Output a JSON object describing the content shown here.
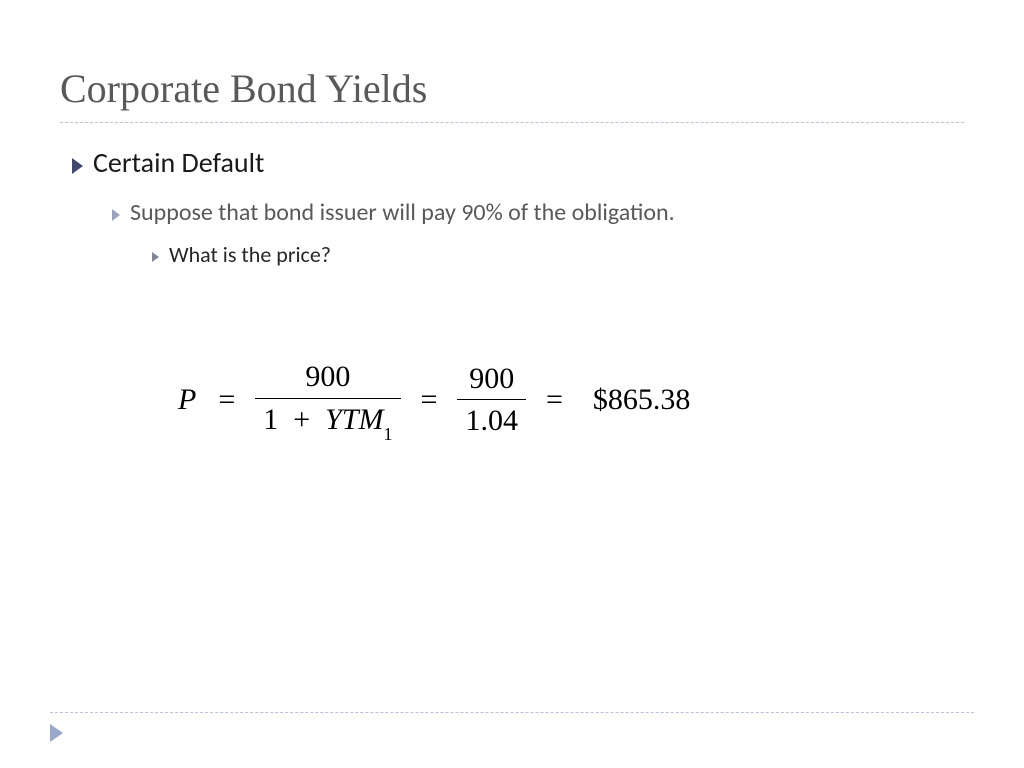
{
  "slide": {
    "title": "Corporate Bond Yields",
    "colors": {
      "title_text": "#595959",
      "divider": "#b8c2d8",
      "bullet_l1": "#40496b",
      "bullet_l2": "#9ba4be",
      "bullet_l3": "#808898",
      "body_l1": "#1a1a1a",
      "body_l2": "#595959",
      "body_l3": "#262626",
      "corner_triangle": "#9ba8cc",
      "background": "#ffffff"
    },
    "typography": {
      "title_family": "Georgia, serif",
      "title_size_pt": 30,
      "body_family": "Gill Sans, Calibri, sans-serif",
      "l1_size_pt": 21,
      "l2_size_pt": 18,
      "l3_size_pt": 16,
      "equation_family": "Times New Roman, serif",
      "equation_size_pt": 22
    },
    "bullets": {
      "level1": "Certain Default",
      "level2": "Suppose that bond issuer will pay 90% of the obligation.",
      "level3": "What is the price?"
    },
    "equation": {
      "lhs_var": "P",
      "frac1": {
        "num": "900",
        "den_left": "1",
        "den_op": "+",
        "den_var": "YTM",
        "den_sub": "1"
      },
      "frac2": {
        "num": "900",
        "den": "1.04"
      },
      "result": "$865.38"
    }
  }
}
